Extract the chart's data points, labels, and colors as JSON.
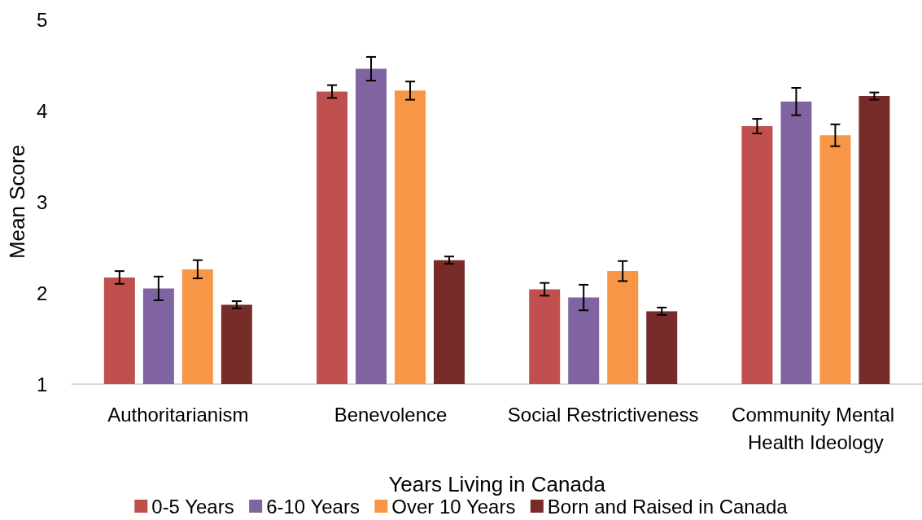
{
  "chart_data": {
    "type": "bar",
    "xlabel": "Years Living in Canada",
    "ylabel": "Mean Score",
    "categories": [
      "Authoritarianism",
      "Benevolence",
      "Social Restrictiveness",
      "Community Mental Health Ideology"
    ],
    "series": [
      {
        "name": "0-5 Years",
        "color": "#c0504d",
        "values": [
          2.17,
          4.21,
          2.04,
          3.83
        ],
        "errors": [
          0.07,
          0.07,
          0.07,
          0.08
        ]
      },
      {
        "name": "6-10 Years",
        "color": "#8064a2",
        "values": [
          2.05,
          4.46,
          1.95,
          4.1
        ],
        "errors": [
          0.13,
          0.13,
          0.14,
          0.15
        ]
      },
      {
        "name": "Over 10 Years",
        "color": "#f79646",
        "values": [
          2.26,
          4.22,
          2.24,
          3.73
        ],
        "errors": [
          0.1,
          0.1,
          0.11,
          0.12
        ]
      },
      {
        "name": "Born and Raised in Canada",
        "color": "#772c2a",
        "values": [
          1.87,
          2.36,
          1.8,
          4.16
        ],
        "errors": [
          0.04,
          0.04,
          0.04,
          0.04
        ]
      }
    ],
    "ylim": [
      1,
      5
    ],
    "yticks": [
      1,
      2,
      3,
      4,
      5
    ],
    "grid": false,
    "legend": "bottom"
  }
}
